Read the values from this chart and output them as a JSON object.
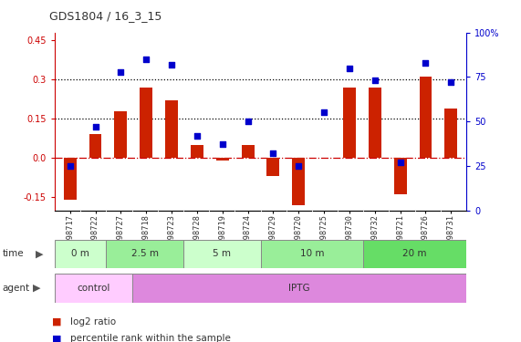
{
  "title": "GDS1804 / 16_3_15",
  "samples": [
    "GSM98717",
    "GSM98722",
    "GSM98727",
    "GSM98718",
    "GSM98723",
    "GSM98728",
    "GSM98719",
    "GSM98724",
    "GSM98729",
    "GSM98720",
    "GSM98725",
    "GSM98730",
    "GSM98732",
    "GSM98721",
    "GSM98726",
    "GSM98731"
  ],
  "log2_ratio": [
    -0.16,
    0.09,
    0.18,
    0.27,
    0.22,
    0.05,
    -0.01,
    0.05,
    -0.07,
    -0.18,
    0.0,
    0.27,
    0.27,
    -0.14,
    0.31,
    0.19
  ],
  "pct_rank": [
    25,
    47,
    78,
    85,
    82,
    42,
    37,
    50,
    32,
    25,
    55,
    80,
    73,
    27,
    83,
    72
  ],
  "time_groups": [
    {
      "label": "0 m",
      "start": 0,
      "end": 2,
      "color": "#ccffcc"
    },
    {
      "label": "2.5 m",
      "start": 2,
      "end": 5,
      "color": "#99ee99"
    },
    {
      "label": "5 m",
      "start": 5,
      "end": 8,
      "color": "#ccffcc"
    },
    {
      "label": "10 m",
      "start": 8,
      "end": 12,
      "color": "#99ee99"
    },
    {
      "label": "20 m",
      "start": 12,
      "end": 16,
      "color": "#66dd66"
    }
  ],
  "agent_groups": [
    {
      "label": "control",
      "start": 0,
      "end": 3,
      "color": "#ffccff"
    },
    {
      "label": "IPTG",
      "start": 3,
      "end": 16,
      "color": "#dd88dd"
    }
  ],
  "bar_color": "#cc2200",
  "dot_color": "#0000cc",
  "ylim_left": [
    -0.2,
    0.48
  ],
  "ylim_right": [
    0,
    100
  ],
  "left_ticks": [
    -0.15,
    0.0,
    0.15,
    0.3,
    0.45
  ],
  "right_ticks": [
    0,
    25,
    50,
    75,
    100
  ],
  "right_tick_labels": [
    "0",
    "25",
    "50",
    "75",
    "100%"
  ],
  "hlines": [
    0.15,
    0.3
  ],
  "zero_line_color": "#cc0000",
  "tick_color_left": "#cc0000",
  "tick_color_right": "#0000cc",
  "bar_width": 0.5
}
